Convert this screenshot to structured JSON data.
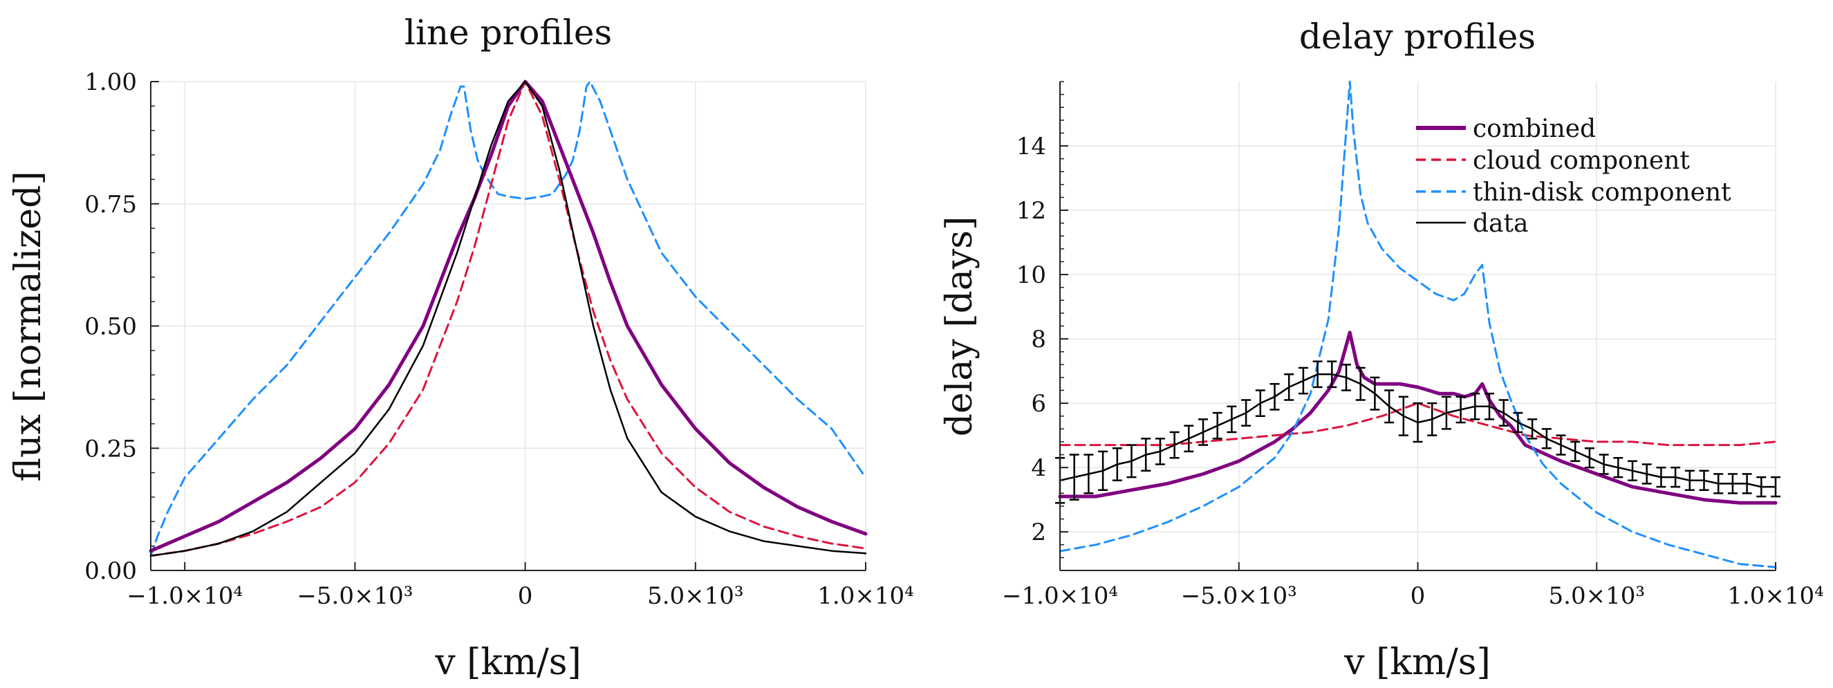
{
  "colors": {
    "combined": "#800080",
    "cloud": "#dc143c",
    "thin_disk": "#1e90ff",
    "data": "#000000"
  },
  "chart_data": [
    {
      "type": "line",
      "title": "line profiles",
      "xlabel": "v [km/s]",
      "ylabel": "flux [normalized]",
      "xlim": [
        -11000,
        10000
      ],
      "ylim": [
        0,
        1
      ],
      "grid": true,
      "xticks": [
        {
          "value": -10000,
          "label": "−1.0×10⁴"
        },
        {
          "value": -5000,
          "label": "−5.0×10³"
        },
        {
          "value": 0,
          "label": "0"
        },
        {
          "value": 5000,
          "label": "5.0×10³"
        },
        {
          "value": 10000,
          "label": "1.0×10⁴"
        }
      ],
      "yticks": [
        {
          "value": 0,
          "label": "0.00"
        },
        {
          "value": 0.25,
          "label": "0.25"
        },
        {
          "value": 0.5,
          "label": "0.50"
        },
        {
          "value": 0.75,
          "label": "0.75"
        },
        {
          "value": 1.0,
          "label": "1.00"
        }
      ],
      "series": [
        {
          "name": "thin-disk component",
          "style": "dashed",
          "color": "#1e90ff",
          "x": [
            -11000,
            -10800,
            -10500,
            -10000,
            -9000,
            -8000,
            -7000,
            -6000,
            -5000,
            -4000,
            -3000,
            -2500,
            -2200,
            -1900,
            -1800,
            -1600,
            -1400,
            -1200,
            -1000,
            -800,
            -500,
            0,
            500,
            800,
            1000,
            1200,
            1400,
            1600,
            1800,
            1900,
            2200,
            2500,
            3000,
            4000,
            5000,
            6000,
            7000,
            8000,
            9000,
            10000
          ],
          "y": [
            0.03,
            0.07,
            0.12,
            0.19,
            0.27,
            0.35,
            0.42,
            0.51,
            0.6,
            0.69,
            0.79,
            0.86,
            0.93,
            0.99,
            0.99,
            0.9,
            0.84,
            0.81,
            0.79,
            0.77,
            0.765,
            0.76,
            0.765,
            0.77,
            0.79,
            0.81,
            0.84,
            0.9,
            0.99,
            1.0,
            0.96,
            0.9,
            0.8,
            0.65,
            0.56,
            0.49,
            0.42,
            0.35,
            0.29,
            0.19
          ]
        },
        {
          "name": "combined",
          "style": "solid",
          "color": "#800080",
          "x": [
            -11000,
            -10000,
            -9000,
            -8000,
            -7000,
            -6000,
            -5000,
            -4000,
            -3000,
            -2000,
            -1500,
            -1000,
            -500,
            0,
            500,
            1000,
            1500,
            2000,
            2500,
            3000,
            4000,
            5000,
            6000,
            7000,
            8000,
            9000,
            10000
          ],
          "y": [
            0.04,
            0.07,
            0.1,
            0.14,
            0.18,
            0.23,
            0.29,
            0.38,
            0.5,
            0.68,
            0.76,
            0.85,
            0.95,
            1.0,
            0.96,
            0.87,
            0.78,
            0.69,
            0.59,
            0.5,
            0.38,
            0.29,
            0.22,
            0.17,
            0.13,
            0.1,
            0.075
          ]
        },
        {
          "name": "cloud component",
          "style": "dashed",
          "color": "#dc143c",
          "x": [
            -11000,
            -10000,
            -9000,
            -8000,
            -7000,
            -6000,
            -5000,
            -4000,
            -3000,
            -2000,
            -1500,
            -1000,
            -500,
            0,
            500,
            1000,
            1500,
            2000,
            2500,
            3000,
            4000,
            5000,
            6000,
            7000,
            8000,
            9000,
            10000
          ],
          "y": [
            0.03,
            0.04,
            0.055,
            0.075,
            0.1,
            0.13,
            0.18,
            0.26,
            0.37,
            0.55,
            0.66,
            0.79,
            0.92,
            1.0,
            0.93,
            0.8,
            0.66,
            0.53,
            0.43,
            0.35,
            0.24,
            0.17,
            0.12,
            0.09,
            0.07,
            0.055,
            0.045
          ]
        },
        {
          "name": "data",
          "style": "solid",
          "color": "#000000",
          "x": [
            -11000,
            -10000,
            -9000,
            -8000,
            -7000,
            -6000,
            -5000,
            -4000,
            -3000,
            -2000,
            -1500,
            -1000,
            -500,
            0,
            500,
            1000,
            1500,
            2000,
            2500,
            3000,
            4000,
            5000,
            6000,
            7000,
            8000,
            9000,
            10000
          ],
          "y": [
            0.03,
            0.04,
            0.055,
            0.08,
            0.12,
            0.18,
            0.24,
            0.33,
            0.46,
            0.65,
            0.76,
            0.87,
            0.96,
            1.0,
            0.95,
            0.82,
            0.66,
            0.5,
            0.37,
            0.27,
            0.16,
            0.11,
            0.08,
            0.06,
            0.05,
            0.04,
            0.035
          ]
        }
      ]
    },
    {
      "type": "line",
      "title": "delay profiles",
      "xlabel": "v [km/s]",
      "ylabel": "delay [days]",
      "xlim": [
        -10000,
        10000
      ],
      "ylim": [
        0.8,
        16
      ],
      "grid": true,
      "legend": "top-right",
      "xticks": [
        {
          "value": -10000,
          "label": "−1.0×10⁴"
        },
        {
          "value": -5000,
          "label": "−5.0×10³"
        },
        {
          "value": 0,
          "label": "0"
        },
        {
          "value": 5000,
          "label": "5.0×10³"
        },
        {
          "value": 10000,
          "label": "1.0×10⁴"
        }
      ],
      "yticks": [
        {
          "value": 2,
          "label": "2"
        },
        {
          "value": 4,
          "label": "4"
        },
        {
          "value": 6,
          "label": "6"
        },
        {
          "value": 8,
          "label": "8"
        },
        {
          "value": 10,
          "label": "10"
        },
        {
          "value": 12,
          "label": "12"
        },
        {
          "value": 14,
          "label": "14"
        }
      ],
      "series": [
        {
          "name": "combined",
          "style": "solid",
          "color": "#800080",
          "x": [
            -10000,
            -9000,
            -8000,
            -7000,
            -6000,
            -5000,
            -4000,
            -3500,
            -3000,
            -2500,
            -2200,
            -1900,
            -1700,
            -1500,
            -1200,
            -1000,
            -500,
            0,
            300,
            600,
            1000,
            1300,
            1600,
            1800,
            2000,
            2300,
            2600,
            3000,
            4000,
            5000,
            6000,
            7000,
            8000,
            9000,
            10000
          ],
          "y": [
            3.1,
            3.1,
            3.3,
            3.5,
            3.8,
            4.2,
            4.8,
            5.2,
            5.7,
            6.4,
            7.0,
            8.2,
            7.2,
            6.8,
            6.6,
            6.6,
            6.6,
            6.5,
            6.4,
            6.3,
            6.3,
            6.2,
            6.3,
            6.6,
            6.1,
            5.6,
            5.3,
            4.7,
            4.2,
            3.8,
            3.4,
            3.2,
            3.0,
            2.9,
            2.9
          ]
        },
        {
          "name": "cloud component",
          "style": "dashed",
          "color": "#dc143c",
          "x": [
            -10000,
            -9000,
            -8000,
            -7000,
            -6000,
            -5000,
            -4000,
            -3000,
            -2000,
            -1000,
            0,
            1000,
            2000,
            3000,
            4000,
            5000,
            6000,
            7000,
            8000,
            9000,
            10000
          ],
          "y": [
            4.7,
            4.7,
            4.7,
            4.7,
            4.8,
            4.9,
            5.0,
            5.1,
            5.3,
            5.6,
            6.0,
            5.6,
            5.3,
            5.0,
            4.9,
            4.8,
            4.8,
            4.7,
            4.7,
            4.7,
            4.8
          ]
        },
        {
          "name": "thin-disk component",
          "style": "dashed",
          "color": "#1e90ff",
          "x": [
            -10000,
            -9000,
            -8000,
            -7000,
            -6000,
            -5000,
            -4000,
            -3500,
            -3000,
            -2500,
            -2200,
            -2000,
            -1900,
            -1800,
            -1600,
            -1400,
            -1000,
            -500,
            0,
            500,
            1000,
            1300,
            1600,
            1800,
            2000,
            2300,
            2600,
            3000,
            3500,
            4000,
            5000,
            6000,
            7000,
            8000,
            9000,
            10000
          ],
          "y": [
            1.4,
            1.6,
            1.9,
            2.3,
            2.8,
            3.4,
            4.3,
            5.1,
            6.3,
            8.6,
            11.5,
            14.5,
            16.0,
            14.5,
            12.5,
            11.6,
            10.8,
            10.2,
            9.8,
            9.4,
            9.2,
            9.4,
            10.0,
            10.3,
            8.5,
            7.0,
            6.1,
            5.0,
            4.1,
            3.5,
            2.6,
            2.0,
            1.6,
            1.3,
            1.0,
            0.9
          ]
        },
        {
          "name": "data",
          "style": "solid",
          "color": "#000000",
          "errorbars": true,
          "x": [
            -10000,
            -9600,
            -9200,
            -8800,
            -8400,
            -8000,
            -7600,
            -7200,
            -6800,
            -6400,
            -6000,
            -5600,
            -5200,
            -4800,
            -4400,
            -4000,
            -3600,
            -3200,
            -2800,
            -2400,
            -2000,
            -1600,
            -1200,
            -800,
            -400,
            0,
            400,
            800,
            1200,
            1600,
            2000,
            2400,
            2800,
            3200,
            3600,
            4000,
            4400,
            4800,
            5200,
            5600,
            6000,
            6400,
            6800,
            7200,
            7600,
            8000,
            8400,
            8800,
            9200,
            9600,
            10000
          ],
          "y": [
            3.6,
            3.7,
            3.8,
            3.9,
            4.1,
            4.2,
            4.4,
            4.5,
            4.7,
            4.9,
            5.1,
            5.3,
            5.5,
            5.7,
            6.0,
            6.2,
            6.5,
            6.7,
            6.9,
            6.9,
            6.8,
            6.6,
            6.3,
            5.9,
            5.6,
            5.4,
            5.5,
            5.7,
            5.8,
            5.9,
            5.9,
            5.7,
            5.4,
            5.2,
            4.9,
            4.7,
            4.5,
            4.3,
            4.1,
            4.0,
            3.9,
            3.8,
            3.7,
            3.7,
            3.6,
            3.6,
            3.5,
            3.5,
            3.5,
            3.4,
            3.4
          ],
          "err": [
            0.7,
            0.7,
            0.6,
            0.6,
            0.5,
            0.5,
            0.5,
            0.4,
            0.4,
            0.4,
            0.4,
            0.4,
            0.4,
            0.4,
            0.4,
            0.4,
            0.4,
            0.4,
            0.4,
            0.4,
            0.4,
            0.5,
            0.5,
            0.5,
            0.6,
            0.6,
            0.5,
            0.5,
            0.4,
            0.4,
            0.4,
            0.4,
            0.3,
            0.3,
            0.3,
            0.3,
            0.3,
            0.3,
            0.3,
            0.3,
            0.3,
            0.3,
            0.3,
            0.3,
            0.3,
            0.3,
            0.3,
            0.3,
            0.3,
            0.3,
            0.3
          ]
        }
      ]
    }
  ]
}
